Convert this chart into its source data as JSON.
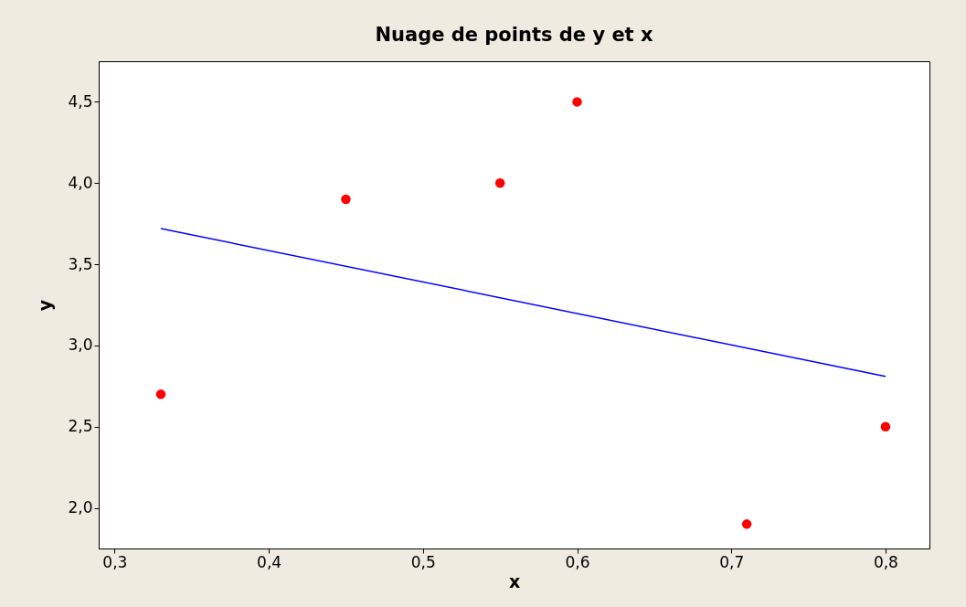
{
  "chart_data": {
    "type": "scatter",
    "title": "Nuage de points de y et x",
    "xlabel": "x",
    "ylabel": "y",
    "xlim": [
      0.2897,
      0.8285
    ],
    "ylim": [
      1.75,
      4.75
    ],
    "xticks": [
      {
        "value": 0.3,
        "label": "0,3"
      },
      {
        "value": 0.4,
        "label": "0,4"
      },
      {
        "value": 0.5,
        "label": "0,5"
      },
      {
        "value": 0.6,
        "label": "0,6"
      },
      {
        "value": 0.7,
        "label": "0,7"
      },
      {
        "value": 0.8,
        "label": "0,8"
      }
    ],
    "yticks": [
      {
        "value": 2.0,
        "label": "2,0"
      },
      {
        "value": 2.5,
        "label": "2,5"
      },
      {
        "value": 3.0,
        "label": "3,0"
      },
      {
        "value": 3.5,
        "label": "3,5"
      },
      {
        "value": 4.0,
        "label": "4,0"
      },
      {
        "value": 4.5,
        "label": "4,5"
      }
    ],
    "grid": false,
    "legend": false,
    "marker": "circle",
    "series": [
      {
        "color": "#ff0000",
        "x": [
          0.33,
          0.45,
          0.55,
          0.6,
          0.71,
          0.8
        ],
        "values": [
          2.7,
          3.9,
          4.0,
          4.5,
          1.9,
          2.5
        ]
      },
      {
        "type": "line",
        "color": "#0000ff",
        "line_style": "solid",
        "marker": "none",
        "x": [
          0.33,
          0.8
        ],
        "values": [
          3.72,
          2.81
        ]
      }
    ]
  }
}
